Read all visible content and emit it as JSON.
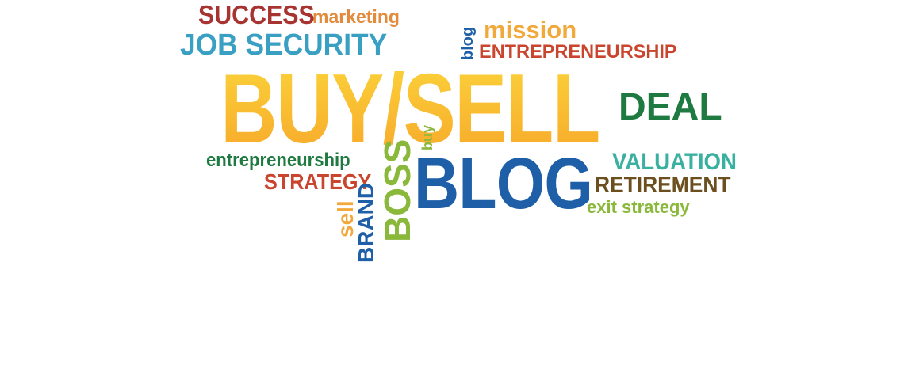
{
  "words": {
    "success": "SUCCESS",
    "marketing": "marketing",
    "job_security": "JOB SECURITY",
    "blog_small": "blog",
    "mission": "mission",
    "entrepreneurship_caps": "ENTREPRENEURSHIP",
    "buy_sell": "BUY/SELL",
    "deal": "DEAL",
    "buy": "buy",
    "entrepreneurship_lower": "entrepreneurship",
    "strategy": "STRATEGY",
    "boss": "BOSS",
    "brand": "BRAND",
    "sell": "sell",
    "blog_big": "BLOG",
    "valuation": "VALUATION",
    "retirement": "RETIREMENT",
    "exit_strategy": "exit strategy"
  },
  "colors": {
    "dark_red": "#a83432",
    "orange": "#e38b3c",
    "light_blue": "#3aa0c3",
    "blue": "#1f5fa8",
    "yellow": "#f2a93b",
    "red_orange": "#c9452e",
    "gold_gradient_top": "#fbd23a",
    "gold_gradient_bottom": "#f7a92a",
    "dark_green": "#1e7a40",
    "lime_green": "#8ab83a",
    "teal": "#3ab0a0",
    "brown": "#6b4f1e"
  }
}
